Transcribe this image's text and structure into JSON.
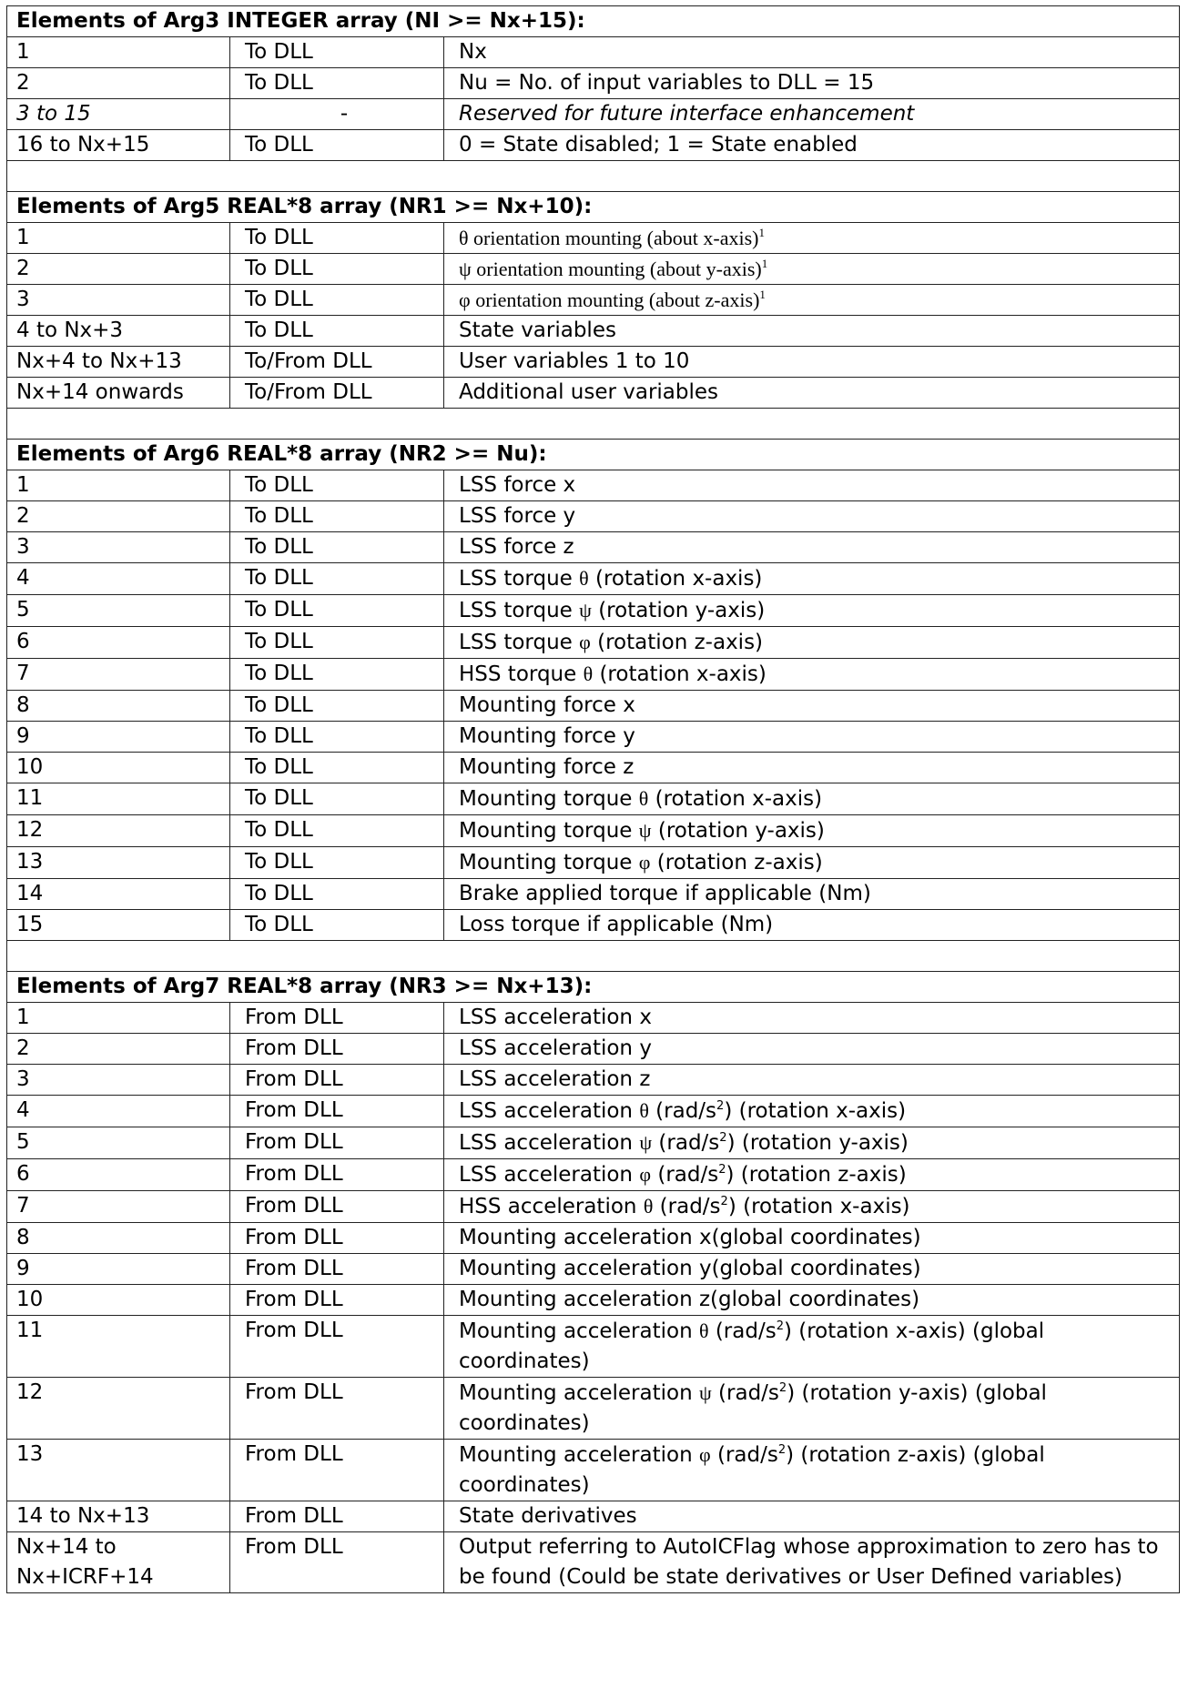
{
  "sections": [
    {
      "title": "Elements of Arg3 INTEGER array (NI >= Nx+15):",
      "rows": [
        {
          "idx": "1",
          "dir": "To DLL",
          "desc": "Nx"
        },
        {
          "idx": "2",
          "dir": "To DLL",
          "desc": "Nu = No. of input variables to DLL = 15"
        },
        {
          "idx": "3 to 15",
          "dir": "-",
          "desc": "Reserved  for future interface enhancement",
          "italic": true
        },
        {
          "idx": "16 to Nx+15",
          "dir": "To DLL",
          "desc": "0 = State disabled; 1 = State enabled"
        }
      ]
    },
    {
      "title": "Elements of Arg5 REAL*8 array (NR1 >= Nx+10):",
      "rows": [
        {
          "idx": "1",
          "dir": "To DLL",
          "desc": "θ orientation mounting (about x-axis)",
          "note": "1",
          "serif": true
        },
        {
          "idx": "2",
          "dir": "To DLL",
          "desc": "ψ orientation mounting (about y-axis)",
          "note": "1",
          "serif": true
        },
        {
          "idx": "3",
          "dir": "To DLL",
          "desc": "φ orientation mounting (about z-axis)",
          "note": "1",
          "serif": true
        },
        {
          "idx": "4 to Nx+3",
          "dir": "To DLL",
          "desc": "State variables"
        },
        {
          "idx": "Nx+4 to Nx+13",
          "dir": "To/From DLL",
          "desc": "User variables 1 to 10",
          "lines": 2
        },
        {
          "idx": "Nx+14 onwards",
          "dir": "To/From DLL",
          "desc": "Additional user variables",
          "lines": 2
        }
      ]
    },
    {
      "title": "Elements of Arg6 REAL*8 array (NR2 >= Nu):",
      "rows": [
        {
          "idx": "1",
          "dir": "To DLL",
          "desc": "LSS force x"
        },
        {
          "idx": "2",
          "dir": "To DLL",
          "desc": "LSS force y"
        },
        {
          "idx": "3",
          "dir": "To DLL",
          "desc": "LSS force z"
        },
        {
          "idx": "4",
          "dir": "To DLL",
          "desc": "LSS torque θ (rotation x-axis)"
        },
        {
          "idx": "5",
          "dir": "To DLL",
          "desc": "LSS torque ψ (rotation y-axis)"
        },
        {
          "idx": "6",
          "dir": "To DLL",
          "desc": "LSS torque φ (rotation z-axis)"
        },
        {
          "idx": "7",
          "dir": "To DLL",
          "desc": "HSS torque θ (rotation x-axis)"
        },
        {
          "idx": "8",
          "dir": "To DLL",
          "desc": "Mounting force x"
        },
        {
          "idx": "9",
          "dir": "To DLL",
          "desc": "Mounting force y"
        },
        {
          "idx": "10",
          "dir": "To DLL",
          "desc": "Mounting force z"
        },
        {
          "idx": "11",
          "dir": "To DLL",
          "desc": "Mounting torque θ (rotation x-axis)"
        },
        {
          "idx": "12",
          "dir": "To DLL",
          "desc": "Mounting torque ψ (rotation y-axis)"
        },
        {
          "idx": "13",
          "dir": "To DLL",
          "desc": "Mounting torque φ (rotation z-axis)"
        },
        {
          "idx": "14",
          "dir": "To DLL",
          "desc": "Brake applied torque if applicable (Nm)"
        },
        {
          "idx": "15",
          "dir": "To DLL",
          "desc": "Loss torque if applicable (Nm)"
        }
      ]
    },
    {
      "title": "Elements of Arg7 REAL*8 array (NR3 >= Nx+13):",
      "last": true,
      "rows": [
        {
          "idx": "1",
          "dir": "From DLL",
          "desc": "LSS acceleration x"
        },
        {
          "idx": "2",
          "dir": "From DLL",
          "desc": "LSS acceleration y"
        },
        {
          "idx": "3",
          "dir": "From DLL",
          "desc": "LSS acceleration z"
        },
        {
          "idx": "4",
          "dir": "From DLL",
          "desc": "LSS acceleration θ (rad/s²) (rotation x-axis)"
        },
        {
          "idx": "5",
          "dir": "From DLL",
          "desc": "LSS acceleration ψ (rad/s²) (rotation y-axis)"
        },
        {
          "idx": "6",
          "dir": "From DLL",
          "desc": "LSS acceleration φ (rad/s²) (rotation z-axis)"
        },
        {
          "idx": "7",
          "dir": "From DLL",
          "desc": "HSS acceleration θ (rad/s²) (rotation x-axis)"
        },
        {
          "idx": "8",
          "dir": "From DLL",
          "desc": "Mounting acceleration x(global coordinates)"
        },
        {
          "idx": "9",
          "dir": "From DLL",
          "desc": "Mounting acceleration y(global coordinates)"
        },
        {
          "idx": "10",
          "dir": "From DLL",
          "desc": "Mounting acceleration z(global coordinates)"
        },
        {
          "idx": "11",
          "dir": "From DLL",
          "desc": "Mounting acceleration θ (rad/s²) (rotation x-axis) (global coordinates)"
        },
        {
          "idx": "12",
          "dir": "From DLL",
          "desc": "Mounting acceleration ψ (rad/s²) (rotation y-axis) (global coordinates)"
        },
        {
          "idx": "13",
          "dir": "From DLL",
          "desc": "Mounting acceleration φ (rad/s²) (rotation z-axis) (global coordinates)"
        },
        {
          "idx": "14 to Nx+13",
          "dir": "From DLL",
          "desc": "State derivatives"
        },
        {
          "idx": "Nx+14 to Nx+ICRF+14",
          "dir": "From DLL",
          "desc": "Output referring to AutoICFlag whose approximation to zero has to be found (Could be state derivatives or User Defined variables)"
        }
      ]
    }
  ]
}
